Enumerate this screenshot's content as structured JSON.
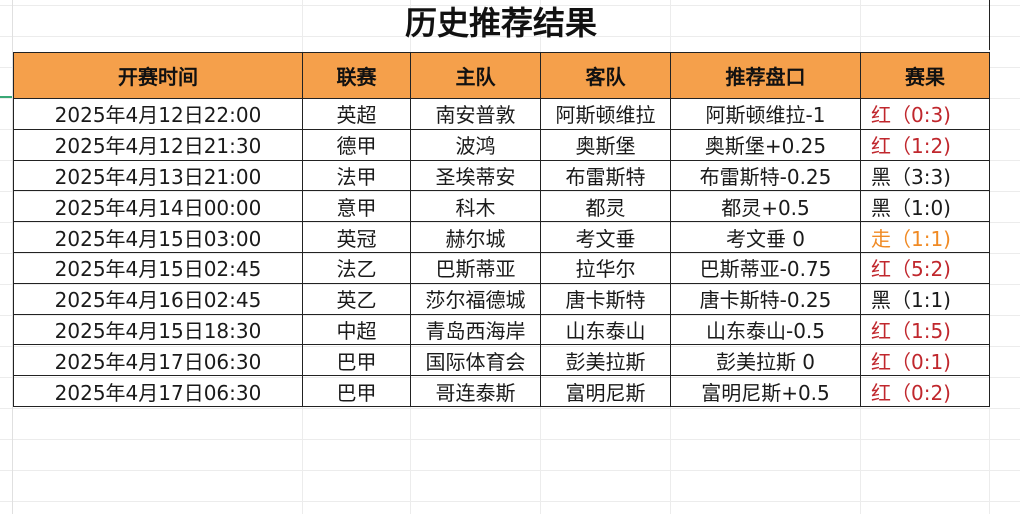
{
  "title": "历史推荐结果",
  "headers": [
    "开赛时间",
    "联赛",
    "主队",
    "客队",
    "推荐盘口",
    "赛果"
  ],
  "colors": {
    "header_bg": "#f5a04b",
    "red": "#c0272d",
    "black": "#1a1a1a",
    "push": "#f08a24"
  },
  "rows": [
    {
      "time": "2025年4月12日22:00",
      "league": "英超",
      "home": "南安普敦",
      "away": "阿斯顿维拉",
      "pick": "阿斯顿维拉-1",
      "result": "红（0:3)",
      "status": "red"
    },
    {
      "time": "2025年4月12日21:30",
      "league": "德甲",
      "home": "波鸿",
      "away": "奥斯堡",
      "pick": "奥斯堡+0.25",
      "result": "红（1:2)",
      "status": "red"
    },
    {
      "time": "2025年4月13日21:00",
      "league": "法甲",
      "home": "圣埃蒂安",
      "away": "布雷斯特",
      "pick": "布雷斯特-0.25",
      "result": "黑（3:3)",
      "status": "black"
    },
    {
      "time": "2025年4月14日00:00",
      "league": "意甲",
      "home": "科木",
      "away": "都灵",
      "pick": "都灵+0.5",
      "result": "黑（1:0)",
      "status": "black"
    },
    {
      "time": "2025年4月15日03:00",
      "league": "英冠",
      "home": "赫尔城",
      "away": "考文垂",
      "pick": "考文垂 0",
      "result": "走（1:1)",
      "status": "orange"
    },
    {
      "time": "2025年4月15日02:45",
      "league": "法乙",
      "home": "巴斯蒂亚",
      "away": "拉华尔",
      "pick": "巴斯蒂亚-0.75",
      "result": "红（5:2)",
      "status": "red"
    },
    {
      "time": "2025年4月16日02:45",
      "league": "英乙",
      "home": "莎尔福德城",
      "away": "唐卡斯特",
      "pick": "唐卡斯特-0.25",
      "result": "黑（1:1)",
      "status": "black"
    },
    {
      "time": "2025年4月15日18:30",
      "league": "中超",
      "home": "青岛西海岸",
      "away": "山东泰山",
      "pick": "山东泰山-0.5",
      "result": "红（1:5)",
      "status": "red"
    },
    {
      "time": "2025年4月17日06:30",
      "league": "巴甲",
      "home": "国际体育会",
      "away": "彭美拉斯",
      "pick": "彭美拉斯 0",
      "result": "红（0:1)",
      "status": "red"
    },
    {
      "time": "2025年4月17日06:30",
      "league": "巴甲",
      "home": "哥连泰斯",
      "away": "富明尼斯",
      "pick": "富明尼斯+0.5",
      "result": "红（0:2)",
      "status": "red"
    }
  ]
}
